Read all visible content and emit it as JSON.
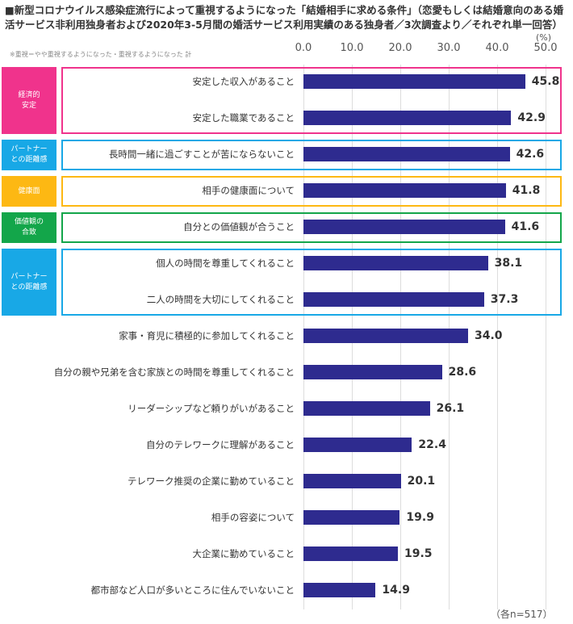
{
  "chart_data": {
    "type": "bar",
    "orientation": "horizontal",
    "title": "■新型コロナウイルス感染症流行によって重視するようになった「結婚相手に求める条件」（恋愛もしくは結婚意向のある婚活サービス非利用独身者および2020年3-5月間の婚活サービス利用実績のある独身者／3次調査より／それぞれ単一回答）",
    "note": "※重視＝やや重視するようになった・重視するようになった 計",
    "unit": "(%)",
    "xlim": [
      0,
      50
    ],
    "tick_labels": [
      "0.0",
      "10.0",
      "20.0",
      "30.0",
      "40.0",
      "50.0"
    ],
    "grid": true,
    "sample_note": "（各n=517）",
    "bar_color": "#2e2b8f",
    "categories": [
      "安定した収入があること",
      "安定した職業であること",
      "長時間一緒に過ごすことが苦にならないこと",
      "相手の健康面について",
      "自分との価値観が合うこと",
      "個人の時間を尊重してくれること",
      "二人の時間を大切にしてくれること",
      "家事・育児に積極的に参加してくれること",
      "自分の親や兄弟を含む家族との時間を尊重してくれること",
      "リーダーシップなど頼りがいがあること",
      "自分のテレワークに理解があること",
      "テレワーク推奨の企業に勤めていること",
      "相手の容姿について",
      "大企業に勤めていること",
      "都市部など人口が多いところに住んでいないこと"
    ],
    "values": [
      45.8,
      42.9,
      42.6,
      41.8,
      41.6,
      38.1,
      37.3,
      34.0,
      28.6,
      26.1,
      22.4,
      20.1,
      19.9,
      19.5,
      14.9
    ],
    "value_labels": [
      "45.8",
      "42.9",
      "42.6",
      "41.8",
      "41.6",
      "38.1",
      "37.3",
      "34.0",
      "28.6",
      "26.1",
      "22.4",
      "20.1",
      "19.9",
      "19.5",
      "14.9"
    ],
    "groups": [
      {
        "label": "経済的\n安定",
        "color": "#f0338c",
        "rows": [
          0,
          1
        ]
      },
      {
        "label": "パートナー\nとの距離感",
        "color": "#18a8e6",
        "rows": [
          2
        ]
      },
      {
        "label": "健康面",
        "color": "#fdb813",
        "rows": [
          3
        ]
      },
      {
        "label": "価値観の\n合致",
        "color": "#13a64a",
        "rows": [
          4
        ]
      },
      {
        "label": "パートナー\nとの距離感",
        "color": "#18a8e6",
        "rows": [
          5,
          6
        ]
      }
    ]
  }
}
